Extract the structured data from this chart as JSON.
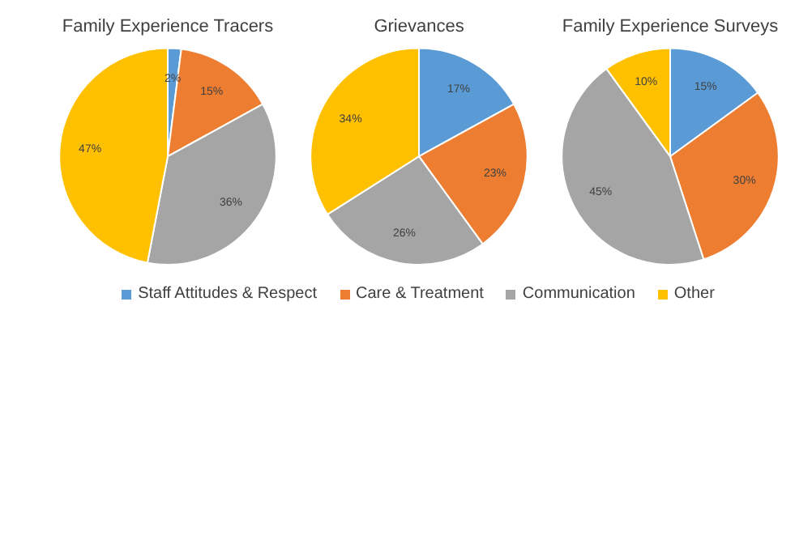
{
  "chart_data": [
    {
      "type": "pie",
      "title": "Family Experience Tracers",
      "categories": [
        "Staff Attitudes & Respect",
        "Care & Treatment",
        "Communication",
        "Other"
      ],
      "values": [
        2,
        15,
        36,
        47
      ],
      "value_labels": [
        "2%",
        "15%",
        "36%",
        "47%"
      ],
      "colors": [
        "#5b9bd5",
        "#ed7d31",
        "#a5a5a5",
        "#ffc000"
      ],
      "legend": "bottom"
    },
    {
      "type": "pie",
      "title": "Grievances",
      "categories": [
        null,
        null,
        null,
        null
      ],
      "values": [
        17,
        23,
        26,
        34
      ],
      "value_labels": [
        "17%",
        "23%",
        "26%",
        "34%"
      ],
      "colors": [
        "#5b9bd5",
        "#ed7d31",
        "#a5a5a5",
        "#ffc000"
      ]
    },
    {
      "type": "pie",
      "title": "Family Experience Surveys",
      "categories": [
        null,
        null,
        null,
        null
      ],
      "values": [
        15,
        30,
        45,
        10
      ],
      "value_labels": [
        "15%",
        "30%",
        "45%",
        "10%"
      ],
      "colors": [
        "#5b9bd5",
        "#ed7d31",
        "#a5a5a5",
        "#ffc000"
      ]
    }
  ]
}
